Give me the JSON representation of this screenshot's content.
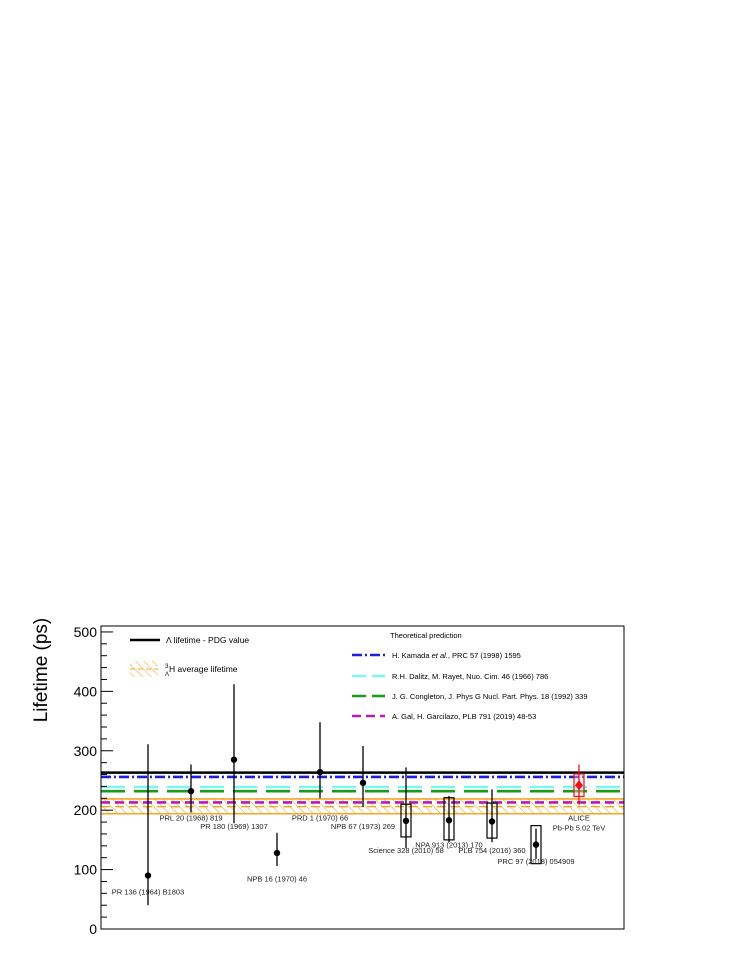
{
  "chart_data": {
    "type": "scatter",
    "ylabel": "Lifetime (ps)",
    "ylim": [
      0,
      510
    ],
    "y_ticks": [
      "0",
      "100",
      "200",
      "300",
      "400",
      "500"
    ],
    "grid": false,
    "legend_title": "Theoretical prediction",
    "legend_left": [
      {
        "label": "Λ lifetime - PDG value",
        "style": "solid",
        "color": "#000000"
      },
      {
        "label": "average lifetime",
        "prefix_super": "3",
        "prefix_sub": "Λ",
        "prefix_main": "H",
        "style": "hatch",
        "color": "#f5a623"
      }
    ],
    "reference_lines": [
      {
        "label": "Λ lifetime - PDG value",
        "y": 263.2,
        "style": "solid",
        "color": "#000000"
      },
      {
        "label": "H. Kamada et al., PRC 57 (1998) 1595",
        "label_pre": "H. Kamada ",
        "label_ital": "et al.",
        "label_post": ", PRC 57 (1998) 1595",
        "y": 256,
        "style": "dashdot",
        "color": "#1f1fdb"
      },
      {
        "label": "R.H. Dalitz, M. Rayet, Nuo. Cim. 46 (1966) 786",
        "y": 239,
        "style": "longdash",
        "color": "#7ff5f0"
      },
      {
        "label": "J. G. Congleton, J. Phys G Nucl. Part. Phys. 18 (1992) 339",
        "y": 232,
        "style": "longdash",
        "color": "#1a9a1a"
      },
      {
        "label": "A. Gal, H. Garcilazo, PLB 791 (2019) 48-53",
        "y": 213,
        "style": "dash",
        "color": "#b81ab8"
      }
    ],
    "average_band": {
      "low": 194,
      "high": 219,
      "center": 206,
      "color": "#f5a623"
    },
    "measurements": [
      {
        "label": "PR 136 (1964) B1803",
        "y": 90,
        "err_lo": 40,
        "err_hi": 311,
        "label_y": 58,
        "syst": null
      },
      {
        "label": "PRL 20 (1968) 819",
        "y": 232,
        "err_lo": 196,
        "err_hi": 277,
        "label_y": 183,
        "syst": null
      },
      {
        "label": "PR 180 (1969) 1307",
        "y": 285,
        "err_lo": 178,
        "err_hi": 412,
        "label_y": 168,
        "syst": null
      },
      {
        "label": "NPB 16 (1970) 46",
        "y": 128,
        "err_lo": 106,
        "err_hi": 162,
        "label_y": 80,
        "syst": null
      },
      {
        "label": "PRD 1 (1970) 66",
        "y": 264,
        "err_lo": 220,
        "err_hi": 348,
        "label_y": 183,
        "syst": null
      },
      {
        "label": "NPB 67 (1973) 269",
        "y": 246,
        "err_lo": 205,
        "err_hi": 308,
        "label_y": 168,
        "syst": null
      },
      {
        "label": "Science 328 (2010) 58",
        "y": 182,
        "err_lo": 136,
        "err_hi": 272,
        "label_y": 128,
        "syst": [
          155,
          210
        ]
      },
      {
        "label": "NPA 913 (2013) 170",
        "y": 183,
        "err_lo": 146,
        "err_hi": 224,
        "label_y": 137,
        "syst": [
          150,
          221
        ]
      },
      {
        "label": "PLB 754 (2016) 360",
        "y": 181,
        "err_lo": 146,
        "err_hi": 235,
        "label_y": 128,
        "syst": [
          153,
          212
        ]
      },
      {
        "label": "PRC 97 (2018) 054909",
        "y": 142,
        "err_lo": 118,
        "err_hi": 169,
        "label_y": 109,
        "syst": [
          110,
          174
        ]
      },
      {
        "label": "ALICE",
        "label2": "Pb-Pb 5.02 TeV",
        "y": 242,
        "err_lo": 209,
        "err_hi": 277,
        "label_y": 183,
        "syst": [
          223,
          261
        ],
        "color": "#e8141c",
        "highlight": true
      }
    ]
  }
}
